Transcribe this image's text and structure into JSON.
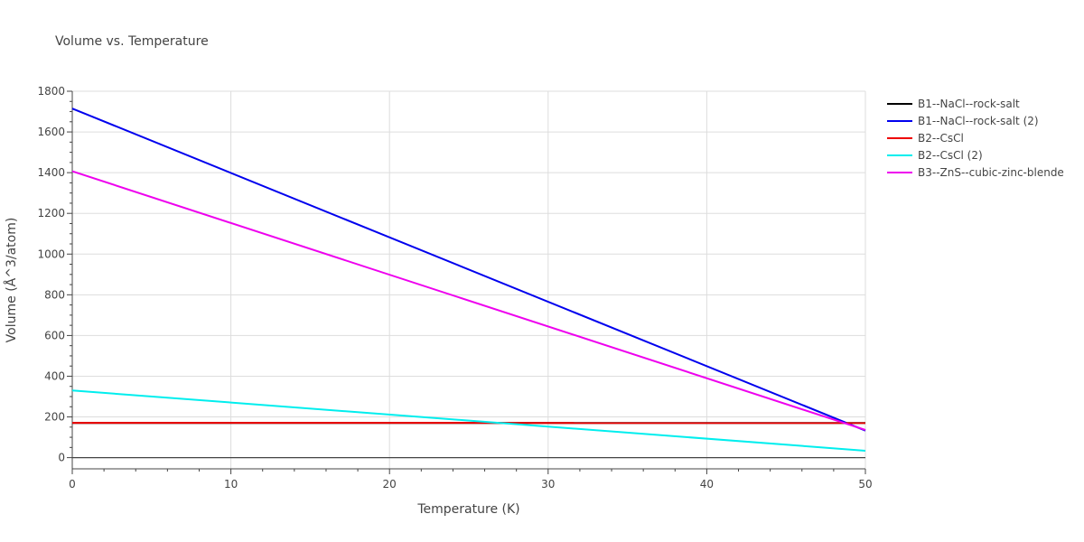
{
  "chart_data": {
    "type": "line",
    "title": "Volume vs. Temperature",
    "xlabel": "Temperature (K)",
    "ylabel": "Volume (Å^3/atom)",
    "xlim": [
      0,
      50
    ],
    "ylim": [
      -55,
      1800
    ],
    "xticks": [
      0,
      10,
      20,
      30,
      40,
      50
    ],
    "yticks": [
      0,
      200,
      400,
      600,
      800,
      1000,
      1200,
      1400,
      1600,
      1800
    ],
    "grid": true,
    "legend_position": "right",
    "series": [
      {
        "name": "B1--NaCl--rock-salt",
        "color": "#000000",
        "x": [
          0,
          50
        ],
        "y": [
          170,
          170
        ]
      },
      {
        "name": "B1--NaCl--rock-salt (2)",
        "color": "#0000ee",
        "x": [
          0,
          50
        ],
        "y": [
          1715,
          133
        ]
      },
      {
        "name": "B2--CsCl",
        "color": "#ee0000",
        "x": [
          0,
          50
        ],
        "y": [
          171,
          170
        ]
      },
      {
        "name": "B2--CsCl (2)",
        "color": "#00eeee",
        "x": [
          0,
          50
        ],
        "y": [
          330,
          34
        ]
      },
      {
        "name": "B3--ZnS--cubic-zinc-blende",
        "color": "#ee00ee",
        "x": [
          0,
          50
        ],
        "y": [
          1407,
          136
        ]
      }
    ]
  }
}
